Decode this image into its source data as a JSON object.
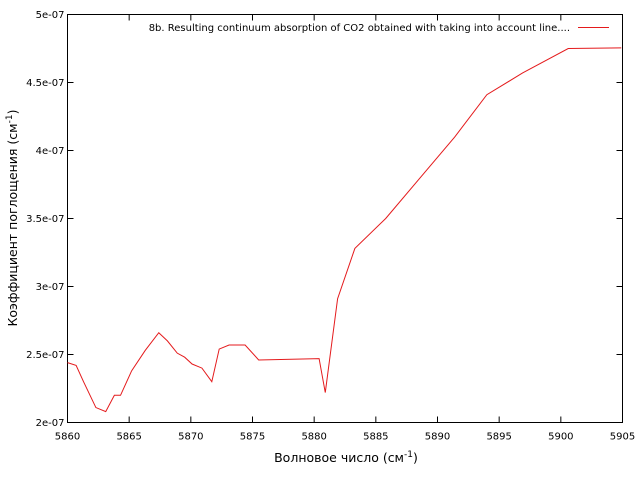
{
  "chart_data": {
    "type": "line",
    "title": "",
    "xlabel": "Волновое число (см",
    "xlabel_sup": "-1",
    "xlabel_end": ")",
    "ylabel": "Коэффициент поглощения (см",
    "ylabel_sup": "-1",
    "ylabel_end": ")",
    "xlim": [
      5860,
      5905
    ],
    "ylim": [
      2e-07,
      5e-07
    ],
    "x_ticks": [
      5860,
      5865,
      5870,
      5875,
      5880,
      5885,
      5890,
      5895,
      5900,
      5905
    ],
    "x_tick_labels": [
      "5860",
      "5865",
      "5870",
      "5875",
      "5880",
      "5885",
      "5890",
      "5895",
      "5900",
      "5905"
    ],
    "y_ticks": [
      2e-07,
      2.5e-07,
      3e-07,
      3.5e-07,
      4e-07,
      4.5e-07,
      5e-07
    ],
    "y_tick_labels": [
      "2e-07",
      "2.5e-07",
      "3e-07",
      "3.5e-07",
      "4e-07",
      "4.5e-07",
      "5e-07"
    ],
    "grid": false,
    "legend_position": "top-right",
    "series": [
      {
        "name": "8b. Resulting continuum absorption of CO2 obtained with taking into account line....",
        "color": "#e41a1c",
        "x": [
          5860.0,
          5860.7,
          5861.3,
          5862.3,
          5863.1,
          5863.8,
          5864.3,
          5865.2,
          5866.3,
          5867.4,
          5868.1,
          5868.9,
          5869.5,
          5870.1,
          5870.9,
          5871.7,
          5872.3,
          5873.1,
          5874.4,
          5875.5,
          5880.4,
          5880.9,
          5881.9,
          5883.3,
          5885.8,
          5888.6,
          5891.4,
          5894.0,
          5896.9,
          5900.6,
          5904.9
        ],
        "y": [
          2.44e-07,
          2.42e-07,
          2.3e-07,
          2.11e-07,
          2.08e-07,
          2.2e-07,
          2.2e-07,
          2.38e-07,
          2.53e-07,
          2.66e-07,
          2.6e-07,
          2.51e-07,
          2.48e-07,
          2.43e-07,
          2.4e-07,
          2.3e-07,
          2.54e-07,
          2.57e-07,
          2.57e-07,
          2.46e-07,
          2.47e-07,
          2.22e-07,
          2.91e-07,
          3.28e-07,
          3.5e-07,
          3.8e-07,
          4.1e-07,
          4.41e-07,
          4.57e-07,
          4.75e-07,
          4.755e-07
        ]
      }
    ]
  }
}
